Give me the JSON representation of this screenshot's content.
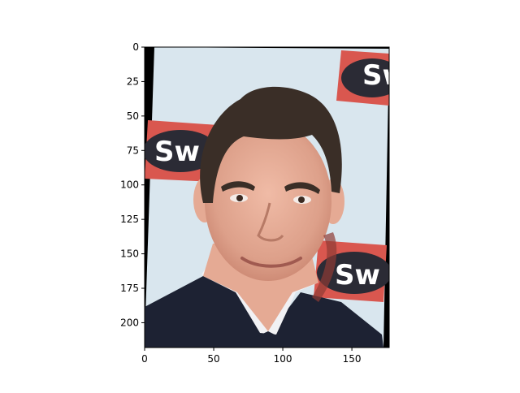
{
  "figure": {
    "x_ticks": [
      0,
      50,
      100,
      150
    ],
    "y_ticks": [
      0,
      25,
      50,
      75,
      100,
      125,
      150,
      175,
      200
    ],
    "x_range": [
      0,
      177
    ],
    "y_range": [
      0,
      218
    ],
    "sign_text": "Sw",
    "colors": {
      "background_wall": "#d9e6ee",
      "sign_red": "#d9574f",
      "sign_oval": "#2b2b35",
      "hair": "#3a2e27",
      "skin": "#e5aa94",
      "suit": "#1d2233",
      "shirt": "#f1f1f4",
      "padding": "#000000"
    }
  }
}
